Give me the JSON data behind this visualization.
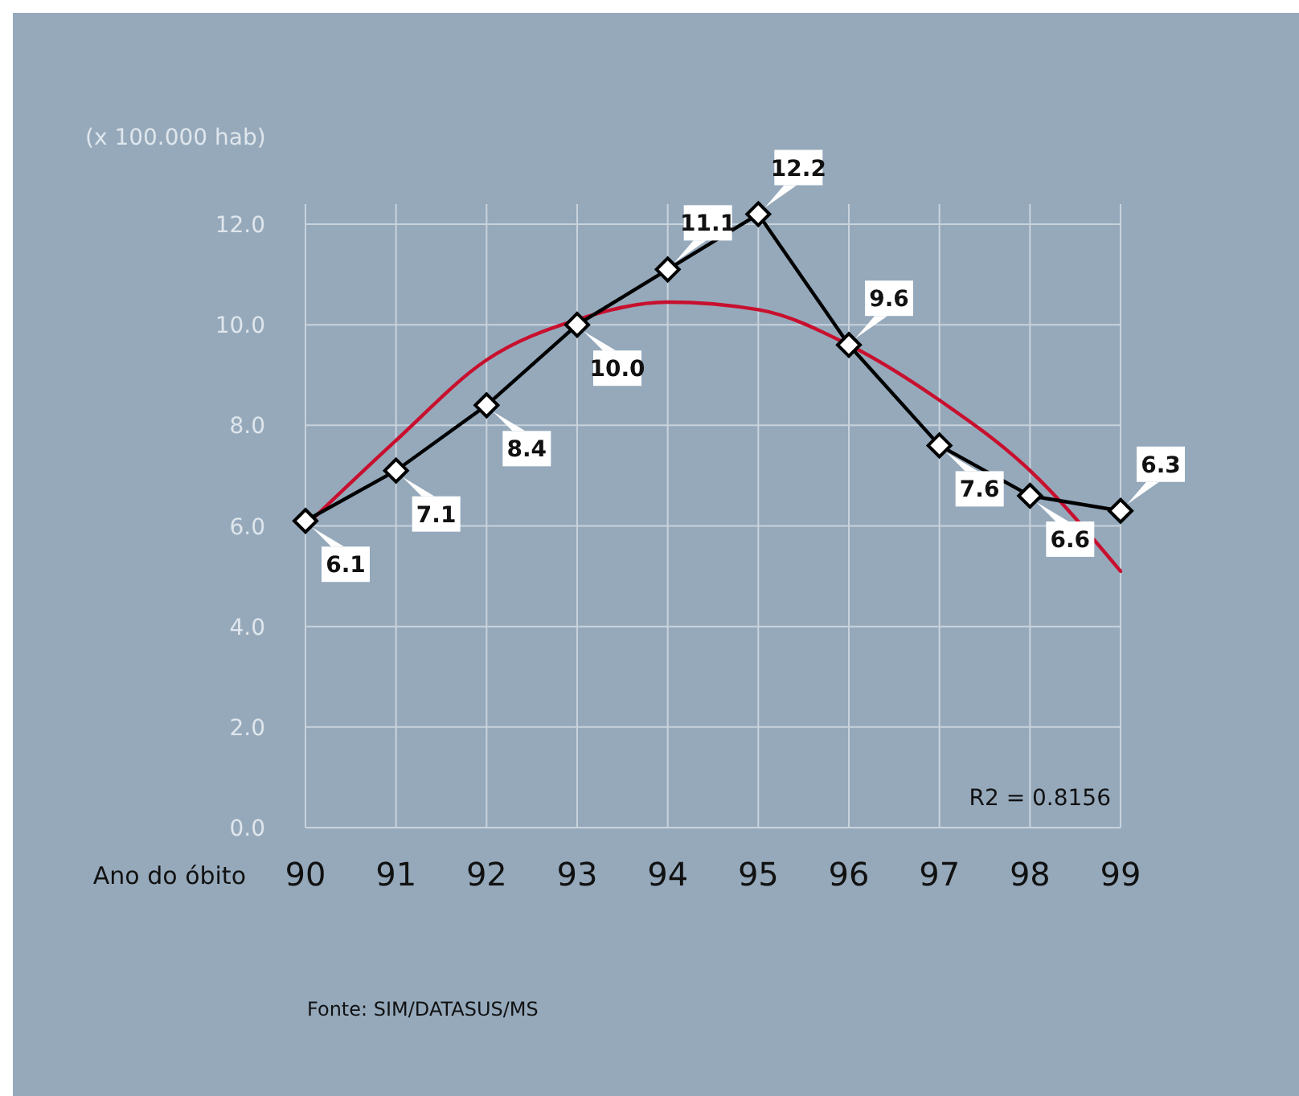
{
  "chart_data": {
    "type": "line",
    "ylabel": "(x 100.000 hab)",
    "xlabel": "Ano do óbito",
    "x": [
      90,
      91,
      92,
      93,
      94,
      95,
      96,
      97,
      98,
      99
    ],
    "xlim": [
      90,
      99
    ],
    "xticks": [
      90,
      91,
      92,
      93,
      94,
      95,
      96,
      97,
      98,
      99
    ],
    "ylim": [
      0,
      12.4
    ],
    "yticks": [
      {
        "value": 0,
        "label": "0.0"
      },
      {
        "value": 2,
        "label": "2.0"
      },
      {
        "value": 4,
        "label": "4.0"
      },
      {
        "value": 6,
        "label": "6.0"
      },
      {
        "value": 8,
        "label": "8.0"
      },
      {
        "value": 10,
        "label": "10.0"
      },
      {
        "value": 12,
        "label": "12.0"
      }
    ],
    "grid": true,
    "marker": "diamond",
    "series": [
      {
        "color": "#000000",
        "values": [
          6.1,
          7.1,
          8.4,
          10.0,
          11.1,
          12.2,
          9.6,
          7.6,
          6.6,
          6.3
        ],
        "value_labels": [
          "6.1",
          "7.1",
          "8.4",
          "10.0",
          "11.1",
          "12.2",
          "9.6",
          "7.6",
          "6.6",
          "6.3"
        ]
      },
      {
        "color": "#c8102e",
        "marker": "none",
        "values": [
          6.0,
          7.7,
          9.3,
          10.1,
          10.45,
          10.3,
          9.6,
          8.5,
          7.1,
          5.1
        ]
      }
    ],
    "annotations": [
      "R2 = 0.8156",
      "Fonte: SIM/DATASUS/MS"
    ]
  }
}
